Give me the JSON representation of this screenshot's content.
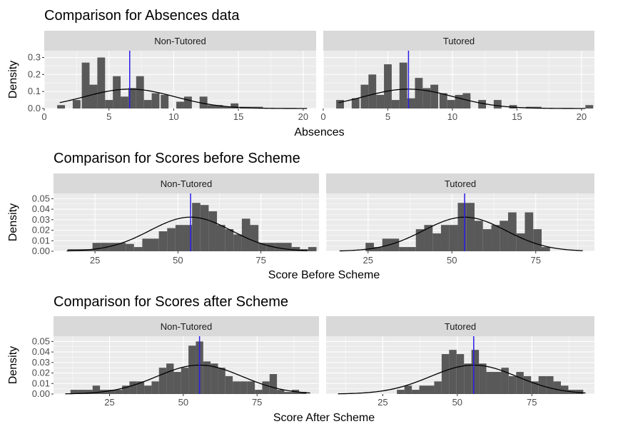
{
  "figure_colors": {
    "panel_bg": "#ebebeb",
    "grid": "#ffffff",
    "strip_bg": "#d9d9d9",
    "bar": "#595959",
    "density": "#000000",
    "mean_line": "#2a1de8"
  },
  "chart_data": [
    {
      "type": "bar",
      "title": "Comparison for Absences data",
      "xlabel": "Absences",
      "ylabel": "Density",
      "facets": [
        "Non-Tutored",
        "Tutored"
      ],
      "xlim": [
        0,
        21
      ],
      "ylim": [
        0,
        0.34
      ],
      "x_ticks": [
        0,
        5,
        10,
        15,
        20
      ],
      "y_ticks": [
        0.0,
        0.1,
        0.2,
        0.3
      ],
      "y_tick_labels": [
        "0.0",
        "0.1",
        "0.2",
        "0.3"
      ],
      "bin_width": 0.6,
      "mean": 6.6,
      "density_sd": 3.5,
      "density_range": [
        1.2,
        20.3
      ],
      "histograms": [
        {
          "facet": "Non-Tutored",
          "x": [
            1.3,
            2.5,
            3.2,
            3.8,
            4.4,
            5.0,
            5.6,
            6.2,
            6.8,
            7.4,
            8.0,
            8.6,
            9.3,
            10.5,
            11.1,
            12.3,
            12.9,
            13.5,
            14.1,
            14.7,
            15.4,
            16.0,
            16.6
          ],
          "y": [
            0.02,
            0.05,
            0.27,
            0.14,
            0.3,
            0.05,
            0.19,
            0.07,
            0.12,
            0.19,
            0.05,
            0.09,
            0.08,
            0.04,
            0.07,
            0.07,
            0.02,
            0.02,
            0.01,
            0.03,
            0.01,
            0.01,
            0.01
          ]
        },
        {
          "facet": "Tutored",
          "x": [
            1.3,
            2.5,
            3.2,
            3.8,
            4.4,
            5.0,
            5.6,
            6.2,
            6.8,
            7.4,
            8.0,
            8.6,
            9.3,
            9.9,
            10.5,
            11.1,
            12.3,
            13.5,
            14.7,
            16.0,
            16.6,
            20.6
          ],
          "y": [
            0.05,
            0.06,
            0.14,
            0.2,
            0.08,
            0.26,
            0.05,
            0.27,
            0.06,
            0.18,
            0.12,
            0.14,
            0.09,
            0.05,
            0.08,
            0.09,
            0.05,
            0.05,
            0.02,
            0.01,
            0.01,
            0.02
          ]
        }
      ]
    },
    {
      "type": "bar",
      "title": "Comparison for Scores before Scheme",
      "xlabel": "Score Before Scheme",
      "ylabel": "Density",
      "facets": [
        "Non-Tutored",
        "Tutored"
      ],
      "xlim": [
        12.5,
        92.5
      ],
      "ylim": [
        0,
        0.055
      ],
      "x_ticks": [
        25,
        50,
        75
      ],
      "y_ticks": [
        0.0,
        0.01,
        0.02,
        0.03,
        0.04,
        0.05
      ],
      "y_tick_labels": [
        "0.00",
        "0.01",
        "0.02",
        "0.03",
        "0.04",
        "0.05"
      ],
      "bin_width": 2.5,
      "mean": 53.8,
      "density_sd": 12.3,
      "density_range": [
        16.5,
        89
      ],
      "histograms": [
        {
          "facet": "Non-Tutored",
          "x": [
            18,
            20.5,
            23,
            25.5,
            28,
            30.5,
            33,
            35.5,
            38,
            40.5,
            43,
            45.5,
            48,
            50.5,
            53,
            55.5,
            58,
            60.5,
            63,
            65.5,
            68,
            70.5,
            73,
            75.5,
            78,
            80.5,
            83,
            85.5,
            88,
            90.5
          ],
          "y": [
            0.002,
            0.002,
            0.002,
            0.008,
            0.008,
            0.008,
            0.008,
            0.007,
            0.004,
            0.012,
            0.012,
            0.019,
            0.022,
            0.025,
            0.025,
            0.046,
            0.044,
            0.038,
            0.025,
            0.021,
            0.016,
            0.031,
            0.025,
            0.008,
            0.008,
            0.008,
            0.008,
            0.004,
            0.002,
            0.004
          ]
        },
        {
          "facet": "Tutored",
          "x": [
            25.5,
            28,
            30.5,
            33,
            35.5,
            38,
            40.5,
            43,
            45.5,
            48,
            50.5,
            53,
            55.5,
            58,
            60.5,
            63,
            65.5,
            68,
            70.5,
            73,
            75.5,
            78
          ],
          "y": [
            0.008,
            0.004,
            0.012,
            0.012,
            0.004,
            0.004,
            0.021,
            0.025,
            0.017,
            0.025,
            0.025,
            0.046,
            0.046,
            0.029,
            0.021,
            0.025,
            0.029,
            0.037,
            0.017,
            0.037,
            0.021,
            0.004
          ]
        }
      ]
    },
    {
      "type": "bar",
      "title": "Comparison for Scores after Scheme",
      "xlabel": "Score After Scheme",
      "ylabel": "Density",
      "facets": [
        "Non-Tutored",
        "Tutored"
      ],
      "xlim": [
        6,
        96
      ],
      "ylim": [
        0,
        0.055
      ],
      "x_ticks": [
        25,
        50,
        75
      ],
      "y_ticks": [
        0.0,
        0.01,
        0.02,
        0.03,
        0.04,
        0.05
      ],
      "y_tick_labels": [
        "0.00",
        "0.01",
        "0.02",
        "0.03",
        "0.04",
        "0.05"
      ],
      "bin_width": 2.5,
      "mean": 55.5,
      "density_sd": 14.5,
      "density_range": [
        10,
        93
      ],
      "histograms": [
        {
          "facet": "Non-Tutored",
          "x": [
            13,
            15.5,
            18,
            20.5,
            23,
            25.5,
            28,
            30.5,
            33,
            35.5,
            38,
            40.5,
            43,
            45.5,
            48,
            50.5,
            53,
            55.5,
            58,
            60.5,
            63,
            65.5,
            68,
            70.5,
            73,
            75.5,
            78,
            80.5,
            83,
            85.5,
            88,
            90.5
          ],
          "y": [
            0.004,
            0.004,
            0.004,
            0.008,
            0.004,
            0.004,
            0.004,
            0.008,
            0.012,
            0.012,
            0.008,
            0.012,
            0.025,
            0.029,
            0.021,
            0.025,
            0.046,
            0.05,
            0.031,
            0.029,
            0.025,
            0.017,
            0.012,
            0.012,
            0.012,
            0.004,
            0.012,
            0.019,
            0.004,
            0.002,
            0.004,
            0.002
          ]
        },
        {
          "facet": "Tutored",
          "x": [
            31,
            33.5,
            36,
            38.5,
            41,
            43.5,
            46,
            48.5,
            51,
            53.5,
            56,
            58.5,
            61,
            63.5,
            66,
            68.5,
            71,
            73.5,
            76,
            78.5,
            81,
            83.5,
            86,
            88.5,
            91
          ],
          "y": [
            0.004,
            0.008,
            0.004,
            0.008,
            0.008,
            0.012,
            0.038,
            0.042,
            0.038,
            0.029,
            0.042,
            0.029,
            0.021,
            0.021,
            0.025,
            0.017,
            0.021,
            0.017,
            0.012,
            0.017,
            0.017,
            0.012,
            0.008,
            0.004,
            0.004
          ]
        }
      ]
    }
  ]
}
